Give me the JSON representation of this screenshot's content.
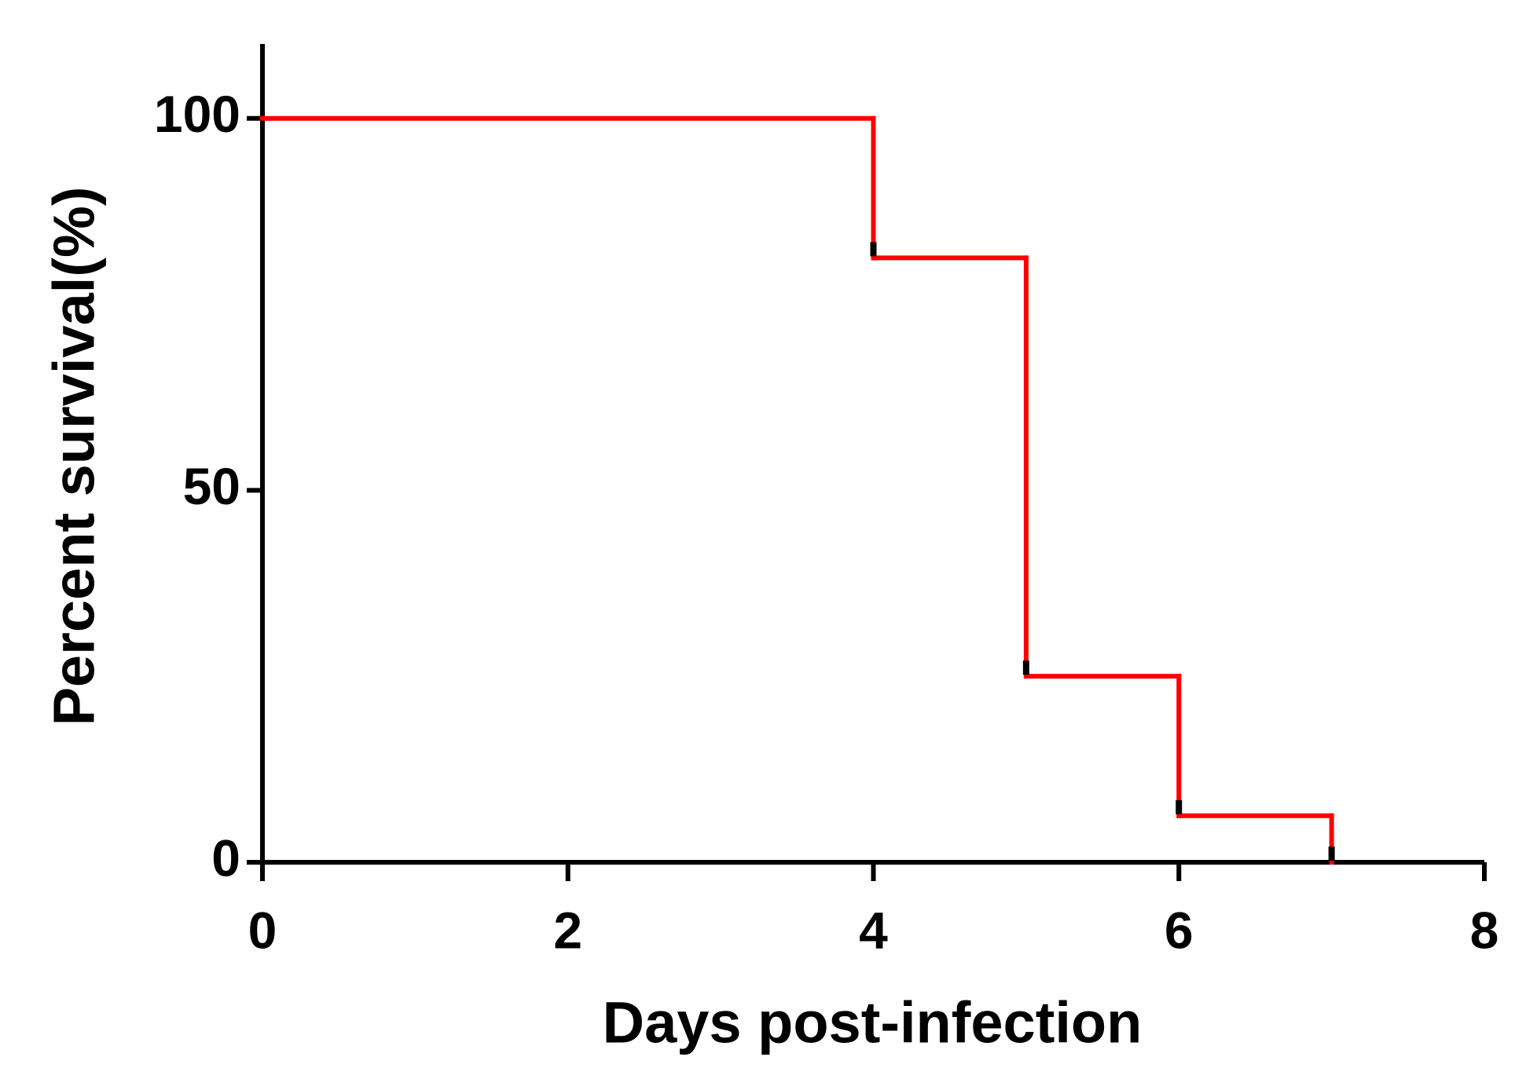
{
  "chart_data": {
    "type": "line",
    "step": true,
    "x_label": "Days post-infection",
    "y_label": "Percent survival(%)",
    "x": [
      0,
      4,
      5,
      6,
      7
    ],
    "values": [
      100,
      81.25,
      25,
      6.25,
      0
    ],
    "color": "#ff0000",
    "xlim": [
      0,
      8
    ],
    "xticks": [
      0,
      2,
      4,
      6,
      8
    ],
    "ylim": [
      0,
      110
    ],
    "yticks": [
      0,
      50,
      100
    ],
    "grid": false
  }
}
